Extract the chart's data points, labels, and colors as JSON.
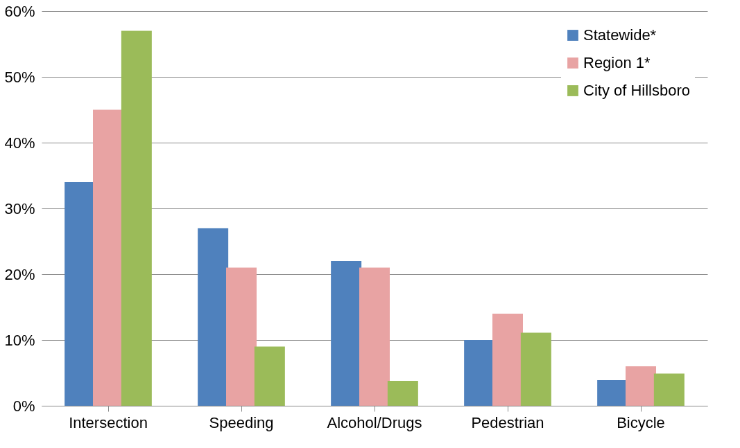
{
  "chart_data": {
    "type": "bar",
    "categories": [
      "Intersection",
      "Speeding",
      "Alcohol/Drugs",
      "Pedestrian",
      "Bicycle"
    ],
    "series": [
      {
        "name": "Statewide*",
        "color": "#4f81bd",
        "values": [
          34,
          27,
          22,
          10,
          3.9
        ]
      },
      {
        "name": "Region 1*",
        "color": "#e8a3a3",
        "values": [
          45,
          21,
          21,
          14,
          6
        ]
      },
      {
        "name": "City of Hillsboro",
        "color": "#9bbb59",
        "values": [
          57,
          9,
          3.8,
          11.1,
          4.9
        ]
      }
    ],
    "ylim": [
      0,
      60
    ],
    "yticks": [
      {
        "value": 0,
        "label": "0%"
      },
      {
        "value": 10,
        "label": "10%"
      },
      {
        "value": 20,
        "label": "20%"
      },
      {
        "value": 30,
        "label": "30%"
      },
      {
        "value": 40,
        "label": "40%"
      },
      {
        "value": 50,
        "label": "50%"
      },
      {
        "value": 60,
        "label": "60%"
      }
    ],
    "grid": "y",
    "legend": "top right"
  }
}
